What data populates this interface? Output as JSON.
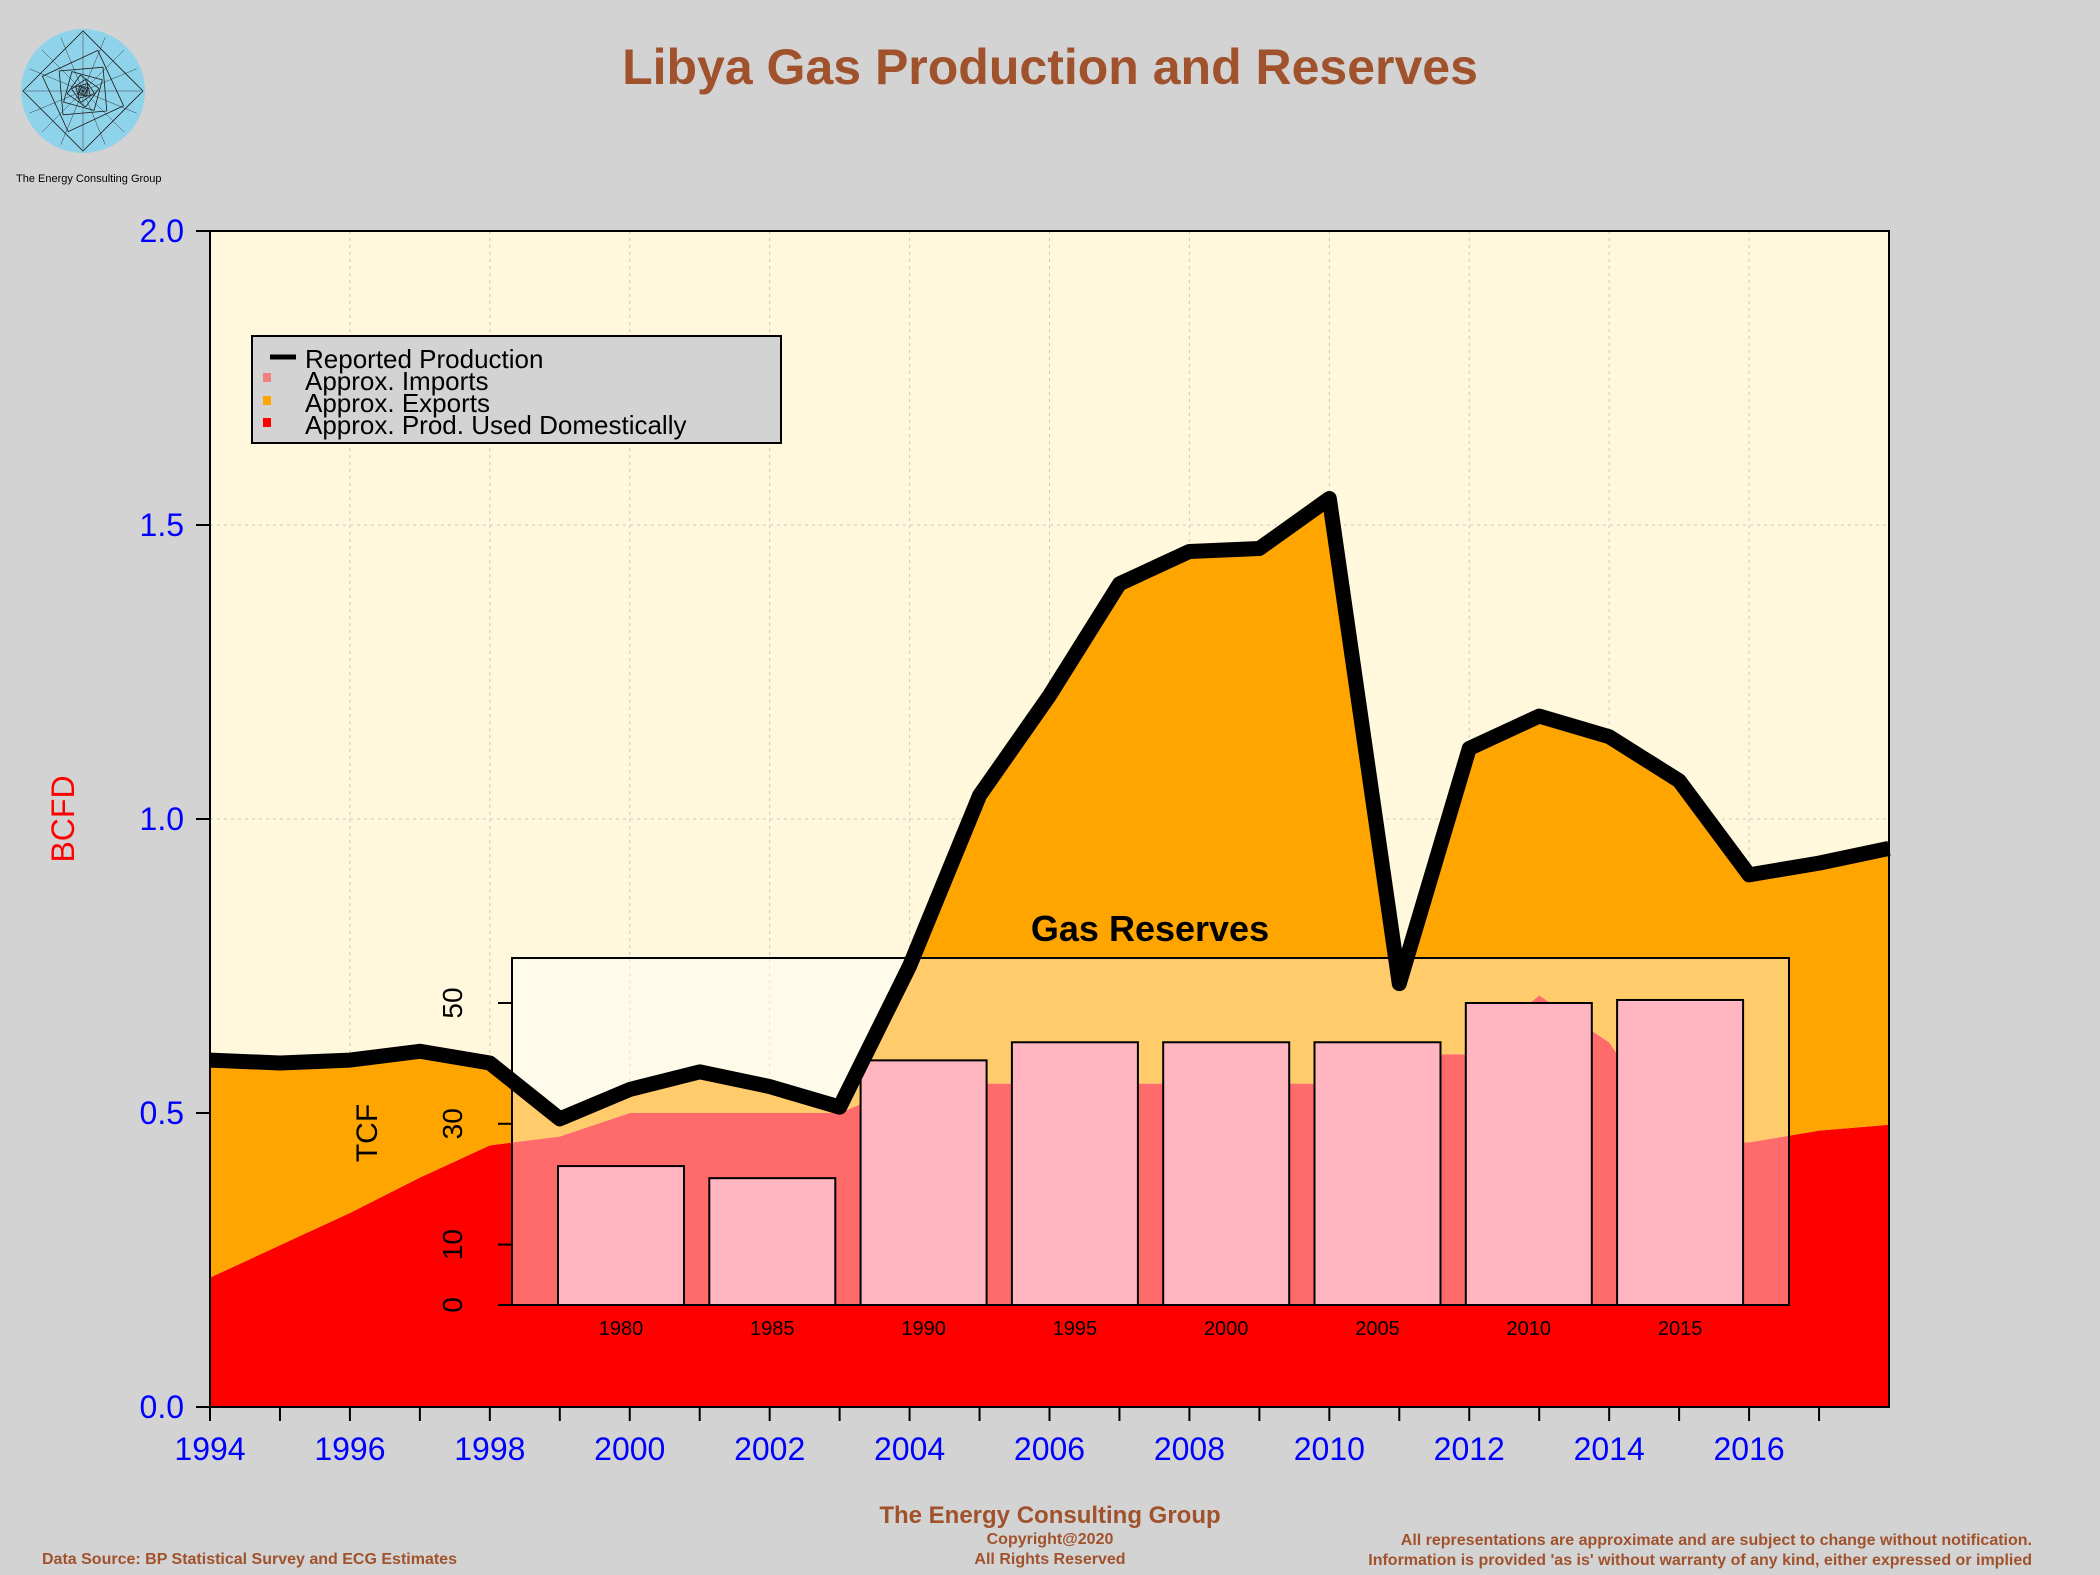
{
  "title": "Libya Gas Production and Reserves",
  "logo_caption": "The Energy Consulting Group",
  "footer": {
    "org": "The Energy Consulting Group",
    "copyright": "Copyright@2020",
    "rights": "All Rights Reserved",
    "source": "Data Source: BP Statistical Survey and ECG Estimates",
    "disclaimer1": "All representations are approximate and are subject to change without notification.",
    "disclaimer2": "Information is provided 'as is' without warranty of any kind, either expressed or implied"
  },
  "colors": {
    "background": "#d3d3d3",
    "plot_bg": "#fff8dc",
    "domestic": "#ff0000",
    "exports": "#ffa500",
    "imports": "#f08080",
    "production_line": "#000000",
    "tick_labels": "#0000ff",
    "ylabel": "#ff0000",
    "title": "#a0522d",
    "reserve_bars": "#ffb6c1"
  },
  "chart_data": [
    {
      "type": "area",
      "title": "Libya Gas Production and Reserves",
      "xlabel": "",
      "ylabel": "BCFD",
      "xlim": [
        1994,
        2018
      ],
      "ylim": [
        0,
        2
      ],
      "x_ticks": [
        1994,
        1996,
        1998,
        2000,
        2002,
        2004,
        2006,
        2008,
        2010,
        2012,
        2014,
        2016
      ],
      "y_ticks": [
        "0.0",
        "0.5",
        "1.0",
        "1.5",
        "2.0"
      ],
      "grid": true,
      "legend_position": "top-left",
      "x": [
        1994,
        1995,
        1996,
        1997,
        1998,
        1999,
        2000,
        2001,
        2002,
        2003,
        2004,
        2005,
        2006,
        2007,
        2008,
        2009,
        2010,
        2011,
        2012,
        2013,
        2014,
        2015,
        2016,
        2017,
        2018
      ],
      "series": [
        {
          "name": "Reported Production",
          "style": "line",
          "values": [
            0.59,
            0.585,
            0.59,
            0.605,
            0.585,
            0.49,
            0.54,
            0.57,
            0.545,
            0.51,
            0.75,
            1.04,
            1.21,
            1.4,
            1.455,
            1.46,
            1.545,
            0.72,
            1.12,
            1.175,
            1.14,
            1.065,
            0.905,
            0.925,
            0.95
          ]
        },
        {
          "name": "Approx. Imports",
          "style": "area",
          "values": [
            0,
            0,
            0,
            0,
            0,
            0,
            0,
            0,
            0,
            0,
            0,
            0,
            0,
            0,
            0,
            0,
            0,
            0,
            0,
            0,
            0,
            0,
            0,
            0,
            0
          ]
        },
        {
          "name": "Approx. Exports",
          "style": "area",
          "values": [
            0.37,
            0.31,
            0.25,
            0.215,
            0.14,
            0.03,
            0.04,
            0.07,
            0.045,
            0.01,
            0.2,
            0.49,
            0.66,
            0.85,
            0.905,
            0.91,
            0.995,
            0.12,
            0.52,
            0.475,
            0.52,
            0.615,
            0.455,
            0.455,
            0.47
          ]
        },
        {
          "name": "Approx. Prod. Used Domestically",
          "style": "area",
          "values": [
            0.22,
            0.275,
            0.33,
            0.39,
            0.445,
            0.46,
            0.5,
            0.5,
            0.5,
            0.5,
            0.55,
            0.55,
            0.55,
            0.55,
            0.55,
            0.55,
            0.55,
            0.6,
            0.6,
            0.7,
            0.62,
            0.45,
            0.45,
            0.47,
            0.48
          ]
        }
      ]
    },
    {
      "type": "bar",
      "title": "Gas Reserves",
      "xlabel": "",
      "ylabel": "TCF",
      "categories": [
        "1980",
        "1985",
        "1990",
        "1995",
        "2000",
        "2005",
        "2010",
        "2015"
      ],
      "values": [
        23,
        21,
        40.5,
        43.5,
        43.5,
        43.5,
        50,
        50.5
      ],
      "ylim": [
        0,
        50
      ],
      "y_ticks": [
        "0",
        "10",
        "30",
        "50"
      ]
    }
  ]
}
